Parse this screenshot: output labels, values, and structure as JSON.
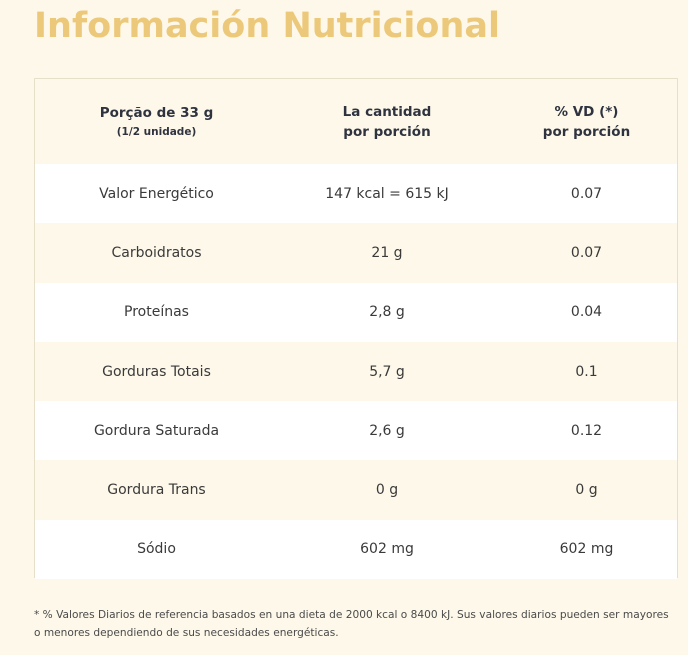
{
  "title": "Información Nutricional",
  "table": {
    "header": {
      "portion": "Porção de 33 g",
      "portion_sub": "(1/2 unidade)",
      "amount_line1": "La cantidad",
      "amount_line2": "por porción",
      "vd_line1": "% VD (*)",
      "vd_line2": "por porción"
    },
    "rows": [
      {
        "nutrient": "Valor Energético",
        "amount": "147 kcal = 615 kJ",
        "vd": "0.07"
      },
      {
        "nutrient": "Carboidratos",
        "amount": "21 g",
        "vd": "0.07"
      },
      {
        "nutrient": "Proteínas",
        "amount": "2,8 g",
        "vd": "0.04"
      },
      {
        "nutrient": "Gorduras Totais",
        "amount": "5,7 g",
        "vd": "0.1"
      },
      {
        "nutrient": "Gordura Saturada",
        "amount": "2,6 g",
        "vd": "0.12"
      },
      {
        "nutrient": "Gordura Trans",
        "amount": "0 g",
        "vd": "0 g"
      },
      {
        "nutrient": "Sódio",
        "amount": "602 mg",
        "vd": "602 mg"
      }
    ]
  },
  "footnote": "* % Valores Diarios de referencia basados en una dieta de 2000 kcal o 8400 kJ. Sus valores diarios pueden ser mayores o menores dependiendo de sus necesidades energéticas.",
  "colors": {
    "title": "#ecc97a",
    "background": "#fdf8e9",
    "row_alt": "#ffffff",
    "header_text": "#2f3340"
  }
}
